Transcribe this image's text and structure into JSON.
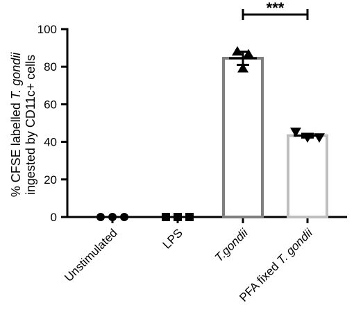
{
  "chart_data": {
    "type": "bar",
    "ylabel_lines": [
      [
        {
          "text": "% CFSE labelled ",
          "italic": false
        },
        {
          "text": "T. gondii",
          "italic": true
        }
      ],
      [
        {
          "text": "ingested by CD11c+ cells",
          "italic": false
        }
      ]
    ],
    "ylim": [
      0,
      100
    ],
    "yticks": [
      0,
      20,
      40,
      60,
      80,
      100
    ],
    "categories": [
      {
        "parts": [
          {
            "text": "Unstimulated",
            "italic": false
          }
        ]
      },
      {
        "parts": [
          {
            "text": "LPS",
            "italic": false
          }
        ]
      },
      {
        "parts": [
          {
            "text": "T.gondii",
            "italic": true
          }
        ]
      },
      {
        "parts": [
          {
            "text": "PFA fixed ",
            "italic": false
          },
          {
            "text": "T. gondii",
            "italic": true
          }
        ]
      }
    ],
    "values": [
      0,
      0,
      84.5,
      43.3
    ],
    "errors": [
      0,
      0,
      3.5,
      1.0
    ],
    "bar_colors": [
      "#000000",
      "#000000",
      "#7f7f7f",
      "#bfbfbf"
    ],
    "point_markers": [
      "circle",
      "square",
      "triangle-up",
      "triangle-down"
    ],
    "points": [
      [
        0,
        0,
        0
      ],
      [
        0,
        0,
        0
      ],
      [
        88,
        86.5,
        79
      ],
      [
        45.5,
        42.5,
        42.5
      ]
    ],
    "significance": [
      {
        "from": 2,
        "to": 3,
        "label": "***"
      }
    ]
  }
}
